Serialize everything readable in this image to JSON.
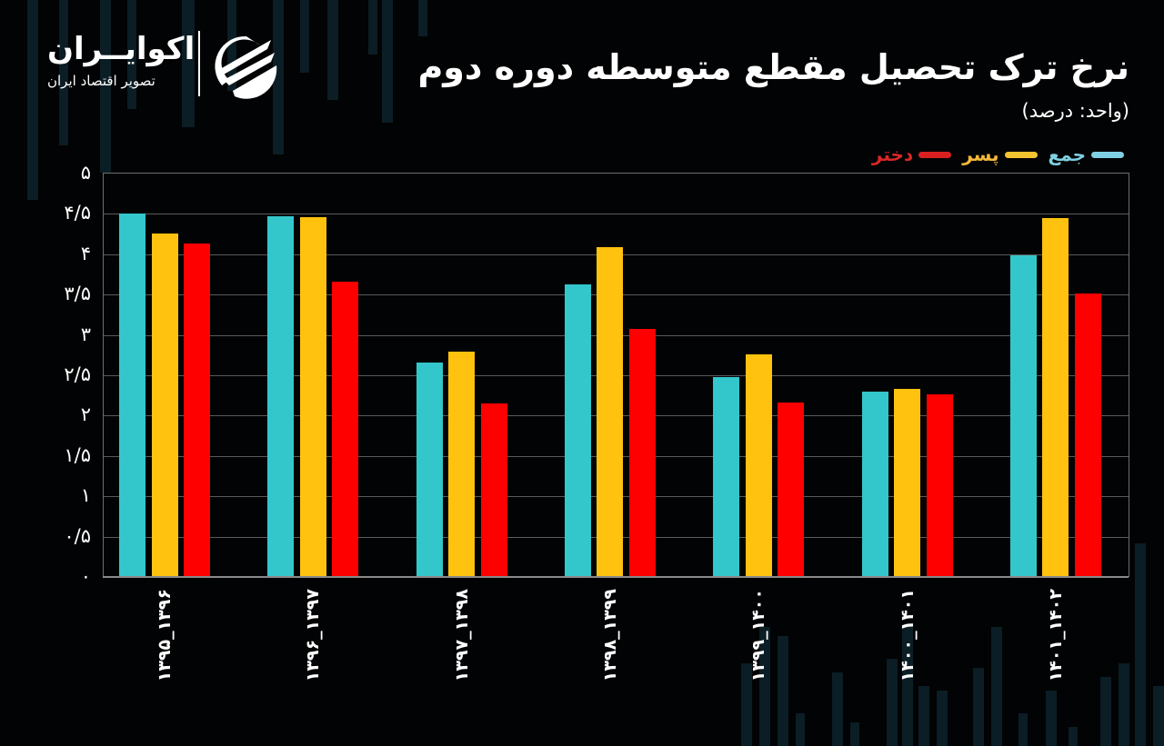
{
  "header": {
    "title": "نرخ ترک تحصیل مقطع متوسطه دوره دوم",
    "subtitle": "(واحد: درصد)"
  },
  "logo": {
    "name": "اکوایــران",
    "tagline": "تصویر اقتصاد ایران",
    "icon": "ecoiran-logo-icon"
  },
  "legend": [
    {
      "label": "جمع",
      "color": "#7fd0e3",
      "text_color": "#7fd0e3"
    },
    {
      "label": "پسر",
      "color": "#f4c430",
      "text_color": "#f4b83a"
    },
    {
      "label": "دختر",
      "color": "#d92020",
      "text_color": "#d92727"
    }
  ],
  "colors": {
    "total": "#33c7cc",
    "boys": "#ffc20e",
    "girls": "#ff0000",
    "background": "#020304"
  },
  "y_ticks": [
    "۵",
    "۴/۵",
    "۴",
    "۳/۵",
    "۳",
    "۲/۵",
    "۲",
    "۱/۵",
    "۱",
    "۰/۵",
    "۰"
  ],
  "chart_data": {
    "type": "bar",
    "title": "نرخ ترک تحصیل مقطع متوسطه دوره دوم",
    "subtitle": "(واحد: درصد)",
    "xlabel": "",
    "ylabel": "درصد",
    "ylim": [
      0,
      5
    ],
    "grid": true,
    "legend_position": "top-right",
    "categories": [
      "۱۳۹۵_۱۳۹۶",
      "۱۳۹۶_۱۳۹۷",
      "۱۳۹۷_۱۳۹۸",
      "۱۳۹۸_۱۳۹۹",
      "۱۳۹۹_۱۴۰۰",
      "۱۴۰۰_۱۴۰۱",
      "۱۴۰۱_۱۴۰۲"
    ],
    "series": [
      {
        "name": "جمع",
        "values": [
          4.5,
          4.47,
          2.66,
          3.63,
          2.48,
          2.3,
          3.99
        ]
      },
      {
        "name": "پسر",
        "values": [
          4.26,
          4.46,
          2.79,
          4.09,
          2.76,
          2.33,
          4.45
        ]
      },
      {
        "name": "دختر",
        "values": [
          4.13,
          3.66,
          2.15,
          3.07,
          2.16,
          2.26,
          3.51
        ]
      }
    ]
  }
}
